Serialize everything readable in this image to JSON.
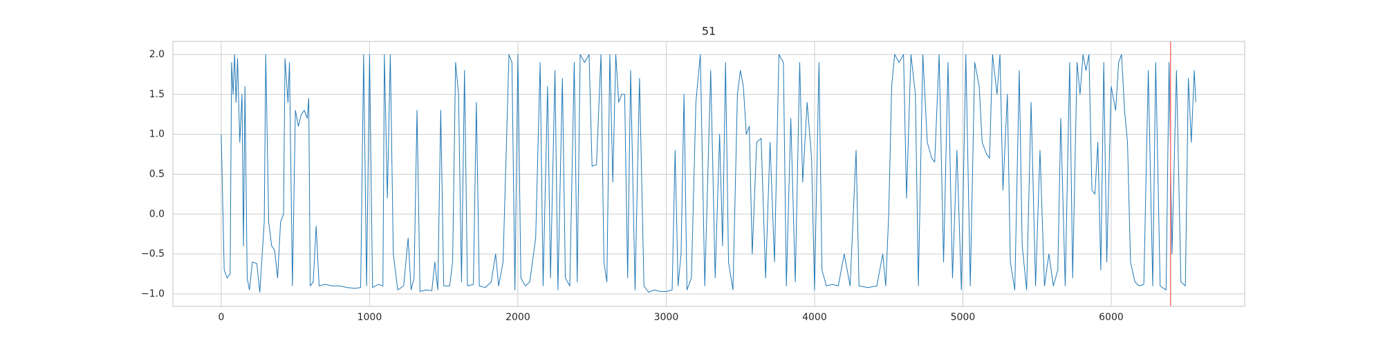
{
  "chart_data": {
    "type": "line",
    "title": "51",
    "color": "#1f77b4",
    "x": [
      0,
      20,
      40,
      60,
      70,
      80,
      90,
      100,
      110,
      125,
      140,
      150,
      160,
      175,
      190,
      210,
      240,
      260,
      290,
      300,
      320,
      340,
      360,
      380,
      400,
      420,
      430,
      450,
      460,
      480,
      500,
      520,
      540,
      560,
      580,
      590,
      600,
      620,
      640,
      660,
      700,
      750,
      800,
      850,
      900,
      940,
      960,
      980,
      1000,
      1020,
      1060,
      1090,
      1100,
      1120,
      1140,
      1160,
      1190,
      1230,
      1260,
      1280,
      1300,
      1320,
      1340,
      1380,
      1420,
      1440,
      1460,
      1480,
      1500,
      1540,
      1560,
      1580,
      1600,
      1620,
      1640,
      1660,
      1700,
      1720,
      1740,
      1780,
      1820,
      1850,
      1870,
      1900,
      1940,
      1960,
      1980,
      2000,
      2020,
      2050,
      2080,
      2120,
      2150,
      2170,
      2200,
      2220,
      2250,
      2270,
      2300,
      2320,
      2350,
      2380,
      2400,
      2420,
      2450,
      2480,
      2500,
      2530,
      2560,
      2580,
      2600,
      2620,
      2640,
      2660,
      2680,
      2700,
      2720,
      2740,
      2760,
      2790,
      2820,
      2850,
      2880,
      2920,
      2960,
      3000,
      3040,
      3060,
      3080,
      3100,
      3120,
      3140,
      3170,
      3200,
      3230,
      3260,
      3300,
      3330,
      3360,
      3380,
      3400,
      3420,
      3450,
      3480,
      3500,
      3520,
      3540,
      3560,
      3580,
      3610,
      3640,
      3670,
      3700,
      3730,
      3760,
      3790,
      3810,
      3840,
      3870,
      3900,
      3920,
      3950,
      3980,
      4000,
      4030,
      4050,
      4080,
      4120,
      4160,
      4200,
      4240,
      4280,
      4300,
      4360,
      4420,
      4460,
      4480,
      4500,
      4520,
      4540,
      4570,
      4600,
      4620,
      4650,
      4680,
      4700,
      4730,
      4760,
      4790,
      4810,
      4840,
      4870,
      4900,
      4930,
      4960,
      4990,
      5020,
      5050,
      5080,
      5110,
      5130,
      5160,
      5180,
      5200,
      5230,
      5250,
      5270,
      5300,
      5320,
      5350,
      5380,
      5400,
      5430,
      5460,
      5490,
      5520,
      5550,
      5580,
      5610,
      5640,
      5660,
      5690,
      5720,
      5740,
      5770,
      5790,
      5810,
      5830,
      5850,
      5870,
      5890,
      5910,
      5930,
      5950,
      5970,
      6000,
      6030,
      6050,
      6070,
      6090,
      6110,
      6130,
      6160,
      6190,
      6220,
      6250,
      6280,
      6300,
      6330,
      6370,
      6390,
      6410,
      6440,
      6470,
      6500,
      6520,
      6540,
      6560,
      6570
    ],
    "values": [
      1.0,
      -0.7,
      -0.8,
      -0.75,
      1.9,
      1.5,
      2.0,
      1.4,
      1.95,
      0.9,
      1.5,
      -0.4,
      1.6,
      -0.8,
      -0.95,
      -0.6,
      -0.62,
      -0.98,
      -0.1,
      2.0,
      -0.1,
      -0.4,
      -0.45,
      -0.8,
      -0.1,
      0.0,
      1.95,
      1.4,
      1.9,
      -0.9,
      1.3,
      1.1,
      1.25,
      1.3,
      1.2,
      1.45,
      -0.9,
      -0.85,
      -0.15,
      -0.9,
      -0.88,
      -0.9,
      -0.9,
      -0.92,
      -0.93,
      -0.92,
      2.0,
      -0.9,
      2.0,
      -0.92,
      -0.88,
      -0.9,
      2.0,
      0.2,
      2.0,
      -0.5,
      -0.95,
      -0.9,
      -0.3,
      -0.95,
      -0.8,
      1.3,
      -0.97,
      -0.95,
      -0.96,
      -0.6,
      -0.95,
      1.3,
      -0.9,
      -0.9,
      -0.6,
      1.9,
      1.5,
      -0.85,
      1.8,
      -0.9,
      -0.88,
      1.4,
      -0.9,
      -0.92,
      -0.85,
      -0.5,
      -0.9,
      -0.6,
      2.0,
      1.9,
      -0.95,
      2.0,
      -0.8,
      -0.9,
      -0.85,
      -0.3,
      1.9,
      -0.9,
      1.6,
      -0.8,
      1.8,
      -0.95,
      1.7,
      -0.8,
      -0.9,
      1.9,
      -0.85,
      2.0,
      1.9,
      2.0,
      0.6,
      0.62,
      2.0,
      -0.6,
      -0.85,
      2.0,
      0.4,
      2.0,
      1.4,
      1.5,
      1.5,
      -0.8,
      1.8,
      -0.95,
      1.7,
      -0.9,
      -0.98,
      -0.95,
      -0.97,
      -0.97,
      -0.95,
      0.8,
      -0.9,
      -0.5,
      1.5,
      -0.95,
      -0.8,
      1.4,
      2.0,
      -0.9,
      1.8,
      -0.8,
      1.0,
      -0.4,
      1.9,
      -0.6,
      -0.95,
      1.5,
      1.8,
      1.6,
      1.0,
      1.1,
      -0.5,
      0.9,
      0.95,
      -0.8,
      0.9,
      -0.6,
      2.0,
      1.9,
      -0.9,
      1.2,
      -0.85,
      1.9,
      0.4,
      1.4,
      0.7,
      -0.95,
      1.9,
      -0.7,
      -0.9,
      -0.88,
      -0.9,
      -0.5,
      -0.9,
      0.8,
      -0.9,
      -0.92,
      -0.9,
      -0.5,
      -0.9,
      0.0,
      1.6,
      2.0,
      1.9,
      2.0,
      0.2,
      2.0,
      1.5,
      -0.9,
      2.0,
      0.9,
      0.7,
      0.65,
      2.0,
      -0.6,
      1.9,
      -0.8,
      0.8,
      -0.95,
      2.0,
      -0.9,
      1.9,
      1.6,
      0.9,
      0.75,
      0.7,
      2.0,
      1.5,
      2.0,
      0.3,
      1.5,
      -0.6,
      -0.95,
      1.8,
      -0.4,
      -0.95,
      1.4,
      -0.9,
      0.8,
      -0.9,
      -0.5,
      -0.9,
      -0.7,
      1.2,
      -0.9,
      1.9,
      -0.8,
      1.9,
      1.5,
      2.0,
      1.8,
      2.0,
      0.3,
      0.25,
      0.9,
      -0.7,
      1.9,
      -0.6,
      1.6,
      1.3,
      1.9,
      2.0,
      1.3,
      0.9,
      -0.6,
      -0.85,
      -0.9,
      -0.88,
      1.8,
      -0.9,
      1.9,
      -0.9,
      -0.95,
      1.9,
      -0.5,
      1.8,
      -0.85,
      -0.9,
      1.7,
      0.9,
      1.8,
      1.4
    ],
    "vline": {
      "x": 6400,
      "color": "#ff7070"
    },
    "xlim": [
      -326,
      6900
    ],
    "ylim": [
      -1.156,
      2.164
    ],
    "xticks": [
      0,
      1000,
      2000,
      3000,
      4000,
      5000,
      6000
    ],
    "yticks": [
      {
        "value": -1.0,
        "label": "−1.0"
      },
      {
        "value": -0.5,
        "label": "−0.5"
      },
      {
        "value": 0.0,
        "label": "0.0"
      },
      {
        "value": 0.5,
        "label": "0.5"
      },
      {
        "value": 1.0,
        "label": "1.0"
      },
      {
        "value": 1.5,
        "label": "1.5"
      },
      {
        "value": 2.0,
        "label": "2.0"
      }
    ],
    "grid": true
  }
}
